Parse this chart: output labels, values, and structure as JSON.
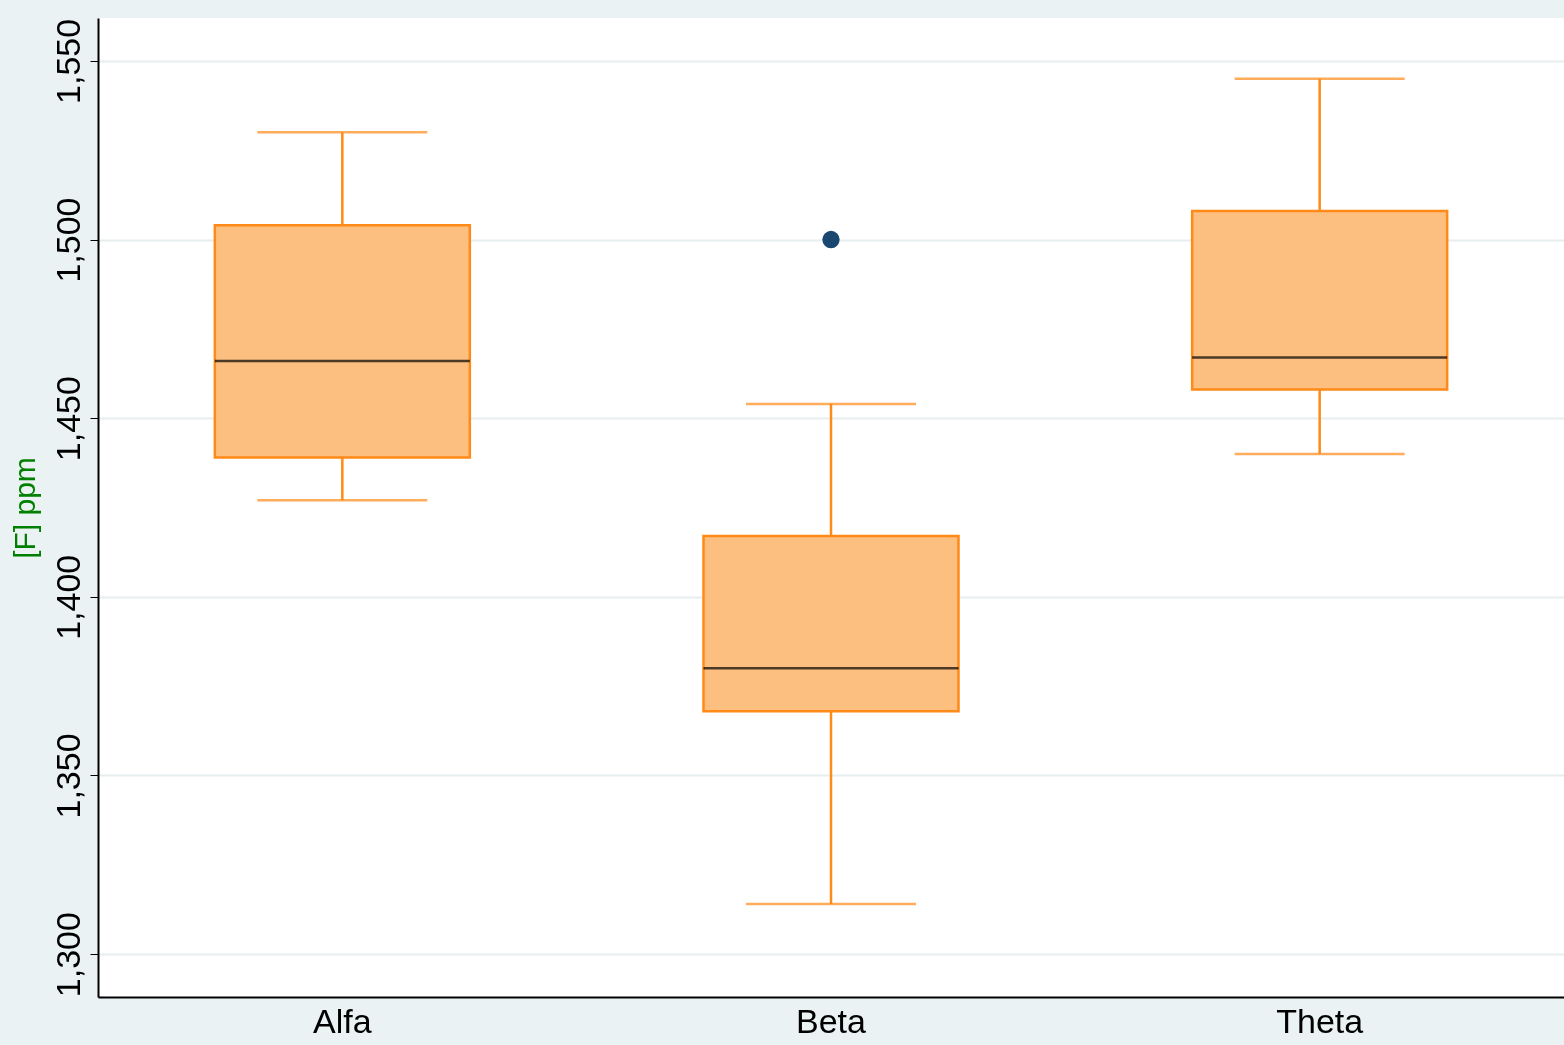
{
  "chart_data": {
    "type": "box",
    "ylabel": "[F] ppm",
    "categories": [
      "Alfa",
      "Beta",
      "Theta"
    ],
    "boxes": [
      {
        "low": 1427,
        "q1": 1439,
        "median": 1466,
        "q3": 1504,
        "high": 1530
      },
      {
        "low": 1314,
        "q1": 1368,
        "median": 1380,
        "q3": 1417,
        "high": 1454,
        "outliers": [
          1500
        ]
      },
      {
        "low": 1440,
        "q1": 1458,
        "median": 1467,
        "q3": 1508,
        "high": 1545
      }
    ],
    "color": "#ff8a17",
    "ylim": [
      1288,
      1562
    ],
    "yticks": [
      {
        "value": 1300,
        "label": "1,300"
      },
      {
        "value": 1350,
        "label": "1,350"
      },
      {
        "value": 1400,
        "label": "1,400"
      },
      {
        "value": 1450,
        "label": "1,450"
      },
      {
        "value": 1500,
        "label": "1,500"
      },
      {
        "value": 1550,
        "label": "1,550"
      }
    ],
    "grid": "y"
  }
}
